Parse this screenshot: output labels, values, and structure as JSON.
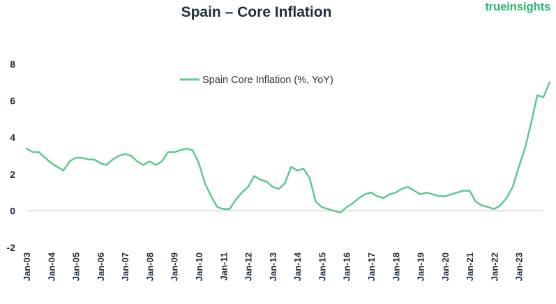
{
  "header": {
    "title": "Spain – Core Inflation",
    "brand": "trueinsights"
  },
  "colors": {
    "line": "#5cc98f",
    "axis": "#bfbfbf",
    "text": "#1f2d3d",
    "brand": "#2bb673"
  },
  "chart_data": {
    "type": "line",
    "title": "Spain – Core Inflation",
    "xlabel": "",
    "ylabel": "",
    "ylim": [
      -2,
      8
    ],
    "yticks": [
      -2,
      0,
      2,
      4,
      6,
      8
    ],
    "xticks": [
      "Jan-03",
      "Jan-04",
      "Jan-05",
      "Jan-06",
      "Jan-07",
      "Jan-08",
      "Jan-09",
      "Jan-10",
      "Jan-11",
      "Jan-12",
      "Jan-13",
      "Jan-14",
      "Jan-15",
      "Jan-16",
      "Jan-17",
      "Jan-18",
      "Jan-19",
      "Jan-20",
      "Jan-21",
      "Jan-22",
      "Jan-23"
    ],
    "legend": {
      "position": "top-center"
    },
    "series": [
      {
        "name": "Spain Core Inflation (%, YoY)",
        "x_start": "Jan-03",
        "step": "3 months",
        "values": [
          3.4,
          3.2,
          3.2,
          2.9,
          2.6,
          2.4,
          2.2,
          2.7,
          2.9,
          2.9,
          2.8,
          2.8,
          2.6,
          2.5,
          2.8,
          3.0,
          3.1,
          3.0,
          2.7,
          2.5,
          2.7,
          2.5,
          2.7,
          3.2,
          3.2,
          3.3,
          3.4,
          3.3,
          2.6,
          1.5,
          0.8,
          0.2,
          0.1,
          0.1,
          0.6,
          1.0,
          1.3,
          1.9,
          1.7,
          1.6,
          1.3,
          1.2,
          1.5,
          2.4,
          2.2,
          2.3,
          1.8,
          0.5,
          0.2,
          0.1,
          0.0,
          -0.1,
          0.2,
          0.4,
          0.7,
          0.9,
          1.0,
          0.8,
          0.7,
          0.9,
          1.0,
          1.2,
          1.3,
          1.1,
          0.9,
          1.0,
          0.9,
          0.8,
          0.8,
          0.9,
          1.0,
          1.1,
          1.1,
          0.5,
          0.3,
          0.2,
          0.1,
          0.3,
          0.7,
          1.3,
          2.4,
          3.4,
          4.8,
          6.3,
          6.2,
          7.0
        ]
      }
    ]
  }
}
